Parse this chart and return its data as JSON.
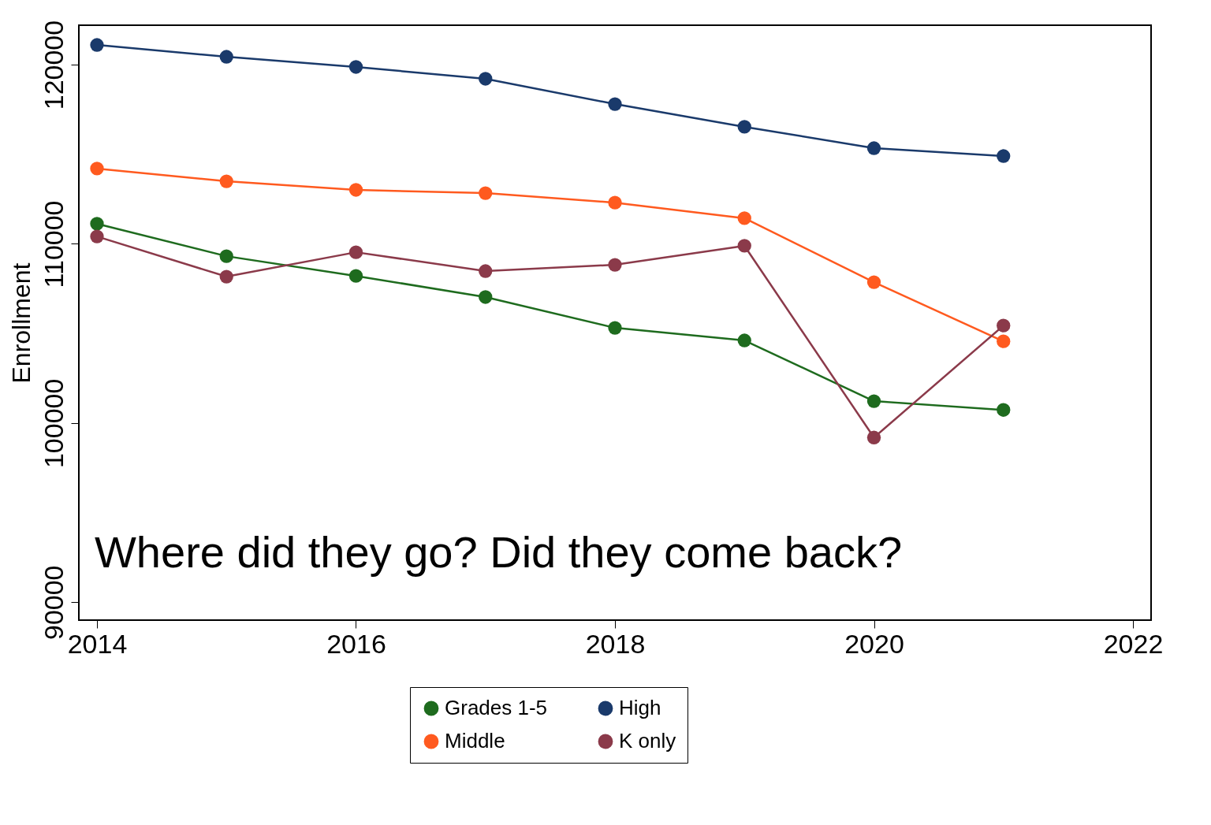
{
  "chart_data": {
    "type": "line",
    "ylabel": "Enrollment",
    "x": [
      2014,
      2015,
      2016,
      2017,
      2018,
      2019,
      2020,
      2021
    ],
    "xlim": [
      2013.86,
      2022.14
    ],
    "xticks": [
      2014,
      2016,
      2018,
      2020,
      2022
    ],
    "ylim": [
      89000,
      122200
    ],
    "yticks": [
      90000,
      100000,
      110000,
      120000
    ],
    "series": [
      {
        "name": "Grades 1-5",
        "color": "#1e6b1e",
        "values": [
          111120,
          109310,
          108210,
          107030,
          105310,
          104610,
          101220,
          100730
        ]
      },
      {
        "name": "Middle",
        "color": "#ff5a1f",
        "values": [
          114200,
          113490,
          113010,
          112830,
          112300,
          111430,
          107860,
          104560
        ]
      },
      {
        "name": "High",
        "color": "#1a3a6b",
        "values": [
          121100,
          120440,
          119870,
          119210,
          117800,
          116530,
          115340,
          114900
        ]
      },
      {
        "name": "K only",
        "color": "#8b3a4a",
        "values": [
          110410,
          108170,
          109530,
          108480,
          108830,
          109890,
          99190,
          105440
        ]
      }
    ],
    "annotations": [
      "Where did they go? Did they come back?"
    ],
    "grid": false,
    "legend": "bottom",
    "marker": "circle",
    "line_style": "solid"
  }
}
